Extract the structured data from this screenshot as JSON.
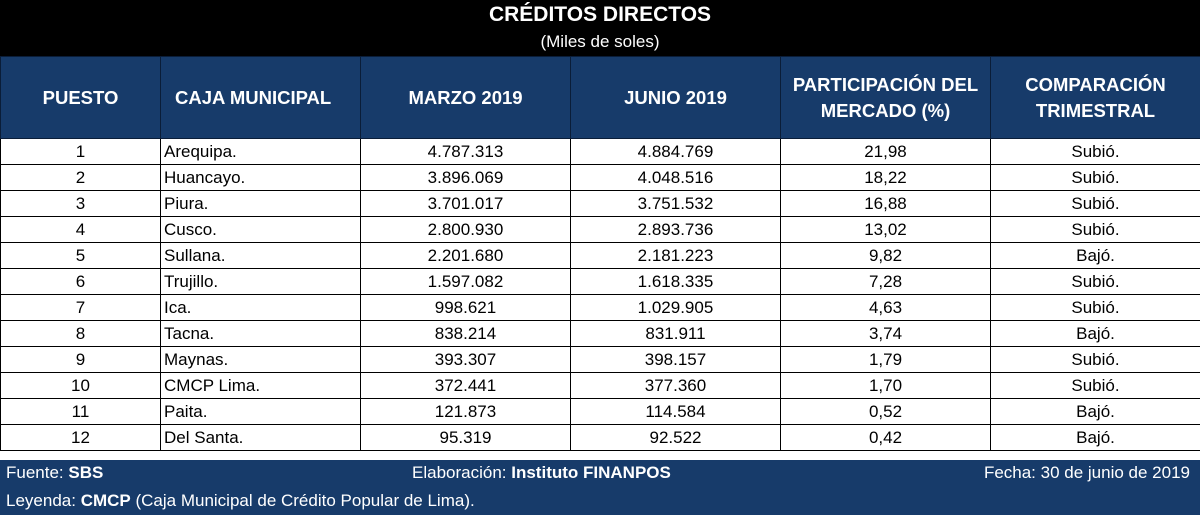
{
  "header": {
    "title": "CRÉDITOS DIRECTOS",
    "subtitle": "(Miles de soles)"
  },
  "columns": [
    "PUESTO",
    "CAJA MUNICIPAL",
    "MARZO 2019",
    "JUNIO 2019",
    "PARTICIPACIÓN DEL MERCADO (%)",
    "COMPARACIÓN TRIMESTRAL"
  ],
  "rows": [
    {
      "puesto": "1",
      "caja": "Arequipa.",
      "marzo": "4.787.313",
      "junio": "4.884.769",
      "participacion": "21,98",
      "comparacion": "Subió."
    },
    {
      "puesto": "2",
      "caja": "Huancayo.",
      "marzo": "3.896.069",
      "junio": "4.048.516",
      "participacion": "18,22",
      "comparacion": "Subió."
    },
    {
      "puesto": "3",
      "caja": "Piura.",
      "marzo": "3.701.017",
      "junio": "3.751.532",
      "participacion": "16,88",
      "comparacion": "Subió."
    },
    {
      "puesto": "4",
      "caja": "Cusco.",
      "marzo": "2.800.930",
      "junio": "2.893.736",
      "participacion": "13,02",
      "comparacion": "Subió."
    },
    {
      "puesto": "5",
      "caja": "Sullana.",
      "marzo": "2.201.680",
      "junio": "2.181.223",
      "participacion": "9,82",
      "comparacion": "Bajó."
    },
    {
      "puesto": "6",
      "caja": "Trujillo.",
      "marzo": "1.597.082",
      "junio": "1.618.335",
      "participacion": "7,28",
      "comparacion": "Subió."
    },
    {
      "puesto": "7",
      "caja": "Ica.",
      "marzo": "998.621",
      "junio": "1.029.905",
      "participacion": "4,63",
      "comparacion": "Subió."
    },
    {
      "puesto": "8",
      "caja": "Tacna.",
      "marzo": "838.214",
      "junio": "831.911",
      "participacion": "3,74",
      "comparacion": "Bajó."
    },
    {
      "puesto": "9",
      "caja": "Maynas.",
      "marzo": "393.307",
      "junio": "398.157",
      "participacion": "1,79",
      "comparacion": "Subió."
    },
    {
      "puesto": "10",
      "caja": "CMCP Lima.",
      "marzo": "372.441",
      "junio": "377.360",
      "participacion": "1,70",
      "comparacion": "Subió."
    },
    {
      "puesto": "11",
      "caja": "Paita.",
      "marzo": "121.873",
      "junio": "114.584",
      "participacion": "0,52",
      "comparacion": "Bajó."
    },
    {
      "puesto": "12",
      "caja": "Del Santa.",
      "marzo": "95.319",
      "junio": "92.522",
      "participacion": "0,42",
      "comparacion": "Bajó."
    }
  ],
  "footer": {
    "source_label": "Fuente:",
    "source_value": "SBS",
    "elaboration_label": "Elaboración:",
    "elaboration_value": "Instituto FINANPOS",
    "date": "Fecha: 30 de junio de 2019",
    "legend_label": "Leyenda:",
    "legend_abbr": "CMCP",
    "legend_text": "(Caja Municipal de Crédito Popular de Lima)."
  },
  "colors": {
    "header_bg": "#000000",
    "table_header_bg": "#173b6a",
    "footer_bg": "#173b6a"
  }
}
